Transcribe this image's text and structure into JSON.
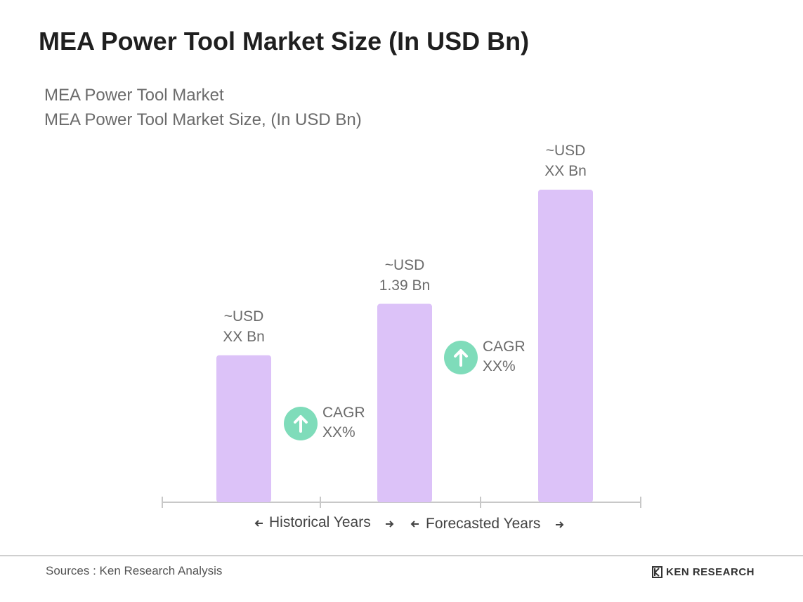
{
  "chart_data": {
    "type": "bar",
    "title": "MEA Power Tool Market Size (In USD Bn)",
    "subtitle": [
      "MEA Power Tool Market",
      "MEA Power Tool Market Size, (In USD Bn)"
    ],
    "categories": [
      null,
      null,
      null
    ],
    "values": [
      1.03,
      1.39,
      2.19
    ],
    "value_labels": [
      "~USD\nXX Bn",
      "~USD\n1.39 Bn",
      "~USD\nXX Bn"
    ],
    "color": "#dcc2f8",
    "annotations": [
      "CAGR\nXX%",
      "CAGR\nXX%"
    ],
    "annotation_color": "#7fdcba",
    "period_labels": [
      "Historical Years",
      "Forecasted Years"
    ],
    "source": "Sources : Ken Research Analysis",
    "logo": "KEN RESEARCH"
  }
}
